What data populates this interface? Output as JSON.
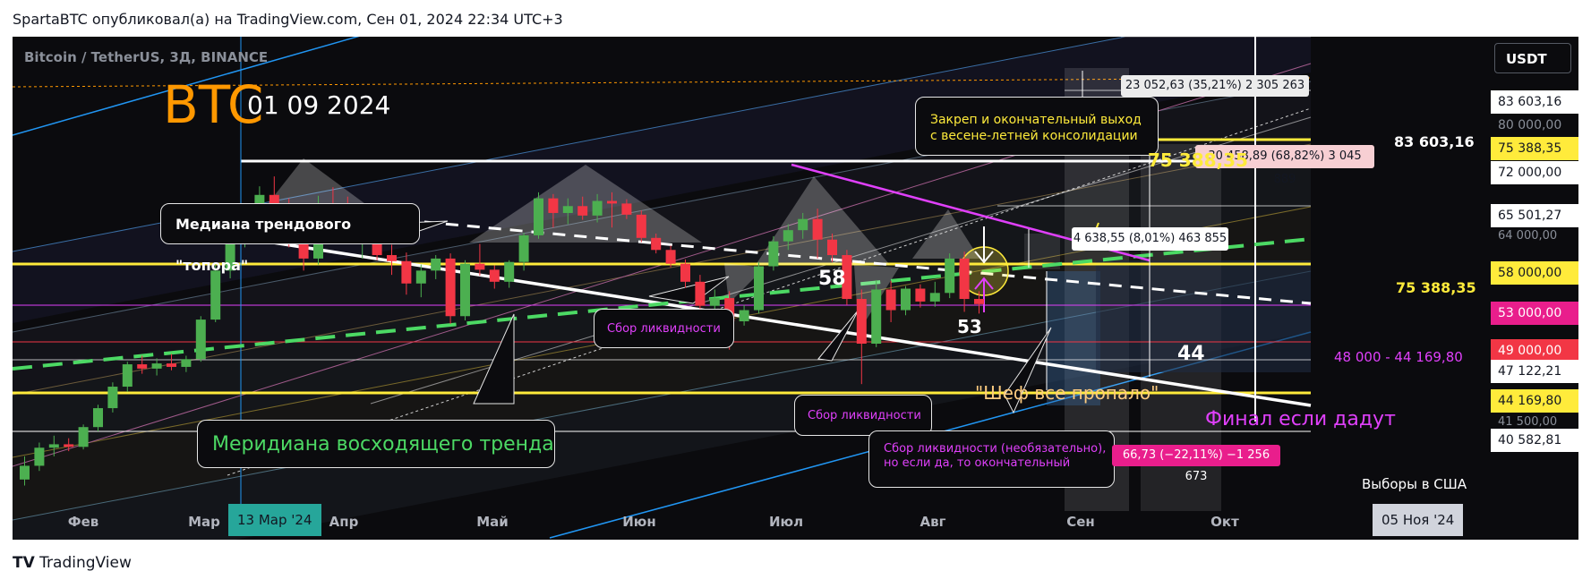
{
  "header": {
    "text": "SpartaBTC опубликовал(а) на TradingView.com, Сен 01, 2024 22:34 UTC+3"
  },
  "symbol": {
    "text": "Bitcoin / TetherUS, 3Д, BINANCE"
  },
  "big_title": {
    "ticker": "BTC",
    "date": "01 09 2024"
  },
  "currency_button": "USDT",
  "footer": {
    "logo_icon": "TV",
    "brand": "TradingView"
  },
  "colors": {
    "bg": "#0b0b0e",
    "up": "#26a69a",
    "up_green": "#4caf50",
    "down": "#f23645",
    "yellow": "#ffeb3b",
    "magenta": "#e040fb",
    "green_dash": "#4cd964",
    "orange": "#ff9800"
  },
  "callouts": {
    "median": "Медиана трендового  \"топора\"",
    "meridian": "Меридиана восходящего тренда",
    "top_exit_line1": "Закреп и окончательный выход",
    "top_exit_line2": "с весене-летней консолидации",
    "liquidity1": "Сбор ликвидности",
    "liquidity2": "Сбор ликвидности",
    "liquidity3_line1": "Сбор ликвидности (необязательно),",
    "liquidity3_line2": "но если да, то окончательный"
  },
  "measures": {
    "m1": "23 052,63 (35,21%) 2 305 263",
    "m2": "30 458,89 (68,82%) 3 045 889",
    "m3": "4 638,55 (8,01%) 463 855",
    "m4": "66,73 (−22,11%) −1 256 673"
  },
  "annotations": {
    "num58": "58",
    "num53": "53",
    "num44": "44",
    "chef": "\"Шеф все пропало\"",
    "final": "Финал если дадут",
    "range": "48 000 - 44 169,80",
    "level_75_left": "75 388,35",
    "level_75_right": "75 388,35",
    "level_83": "83 603,16",
    "elections": "Выборы в США"
  },
  "price_axis": [
    {
      "text": "83 603,16",
      "style": "dark"
    },
    {
      "text": "80 000,00",
      "style": "plain"
    },
    {
      "text": "75 388,35",
      "style": "yellow"
    },
    {
      "text": "72 000,00",
      "style": "dark"
    },
    {
      "text": "65 501,27",
      "style": "dark"
    },
    {
      "text": "64 000,00",
      "style": "plain"
    },
    {
      "text": "58 000,00",
      "style": "yellow"
    },
    {
      "text": "53 000,00",
      "style": "magenta"
    },
    {
      "text": "49 000,00",
      "style": "red"
    },
    {
      "text": "47 122,21",
      "style": "dark"
    },
    {
      "text": "44 169,80",
      "style": "yellow"
    },
    {
      "text": "41 500,00",
      "style": "plain"
    },
    {
      "text": "40 582,81",
      "style": "dark"
    }
  ],
  "time_axis": [
    "Фев",
    "Мар",
    "Апр",
    "Май",
    "Июн",
    "Июл",
    "Авг",
    "Сен",
    "Окт"
  ],
  "time_highlights": {
    "start": "13 Мар '24",
    "end": "05 Ноя '24"
  },
  "chart_data": {
    "type": "candlestick",
    "title": "Bitcoin / TetherUS, 3Д, BINANCE",
    "ylim": [
      39000,
      90000
    ],
    "candles": [
      [
        38500,
        41200,
        37800,
        40100
      ],
      [
        40100,
        42800,
        39500,
        42200
      ],
      [
        42200,
        43600,
        41200,
        42600
      ],
      [
        42600,
        43300,
        41800,
        42300
      ],
      [
        42300,
        44900,
        42000,
        44600
      ],
      [
        44600,
        47200,
        44100,
        46800
      ],
      [
        46800,
        49800,
        46300,
        49300
      ],
      [
        49300,
        52200,
        48700,
        51900
      ],
      [
        51900,
        52900,
        50800,
        51400
      ],
      [
        51400,
        52600,
        50600,
        52000
      ],
      [
        52000,
        53100,
        51200,
        51600
      ],
      [
        51600,
        52900,
        51000,
        52500
      ],
      [
        52500,
        57500,
        52200,
        57100
      ],
      [
        57100,
        63500,
        56800,
        62800
      ],
      [
        62800,
        67500,
        61900,
        66800
      ],
      [
        66800,
        69000,
        65500,
        67400
      ],
      [
        67400,
        72600,
        66800,
        71600
      ],
      [
        71600,
        73750,
        69500,
        70200
      ],
      [
        70200,
        71200,
        65500,
        67800
      ],
      [
        67800,
        69900,
        62800,
        64200
      ],
      [
        64200,
        71500,
        63500,
        70600
      ],
      [
        70600,
        72500,
        68000,
        69500
      ],
      [
        69500,
        71400,
        66000,
        66500
      ],
      [
        66500,
        68900,
        64200,
        66700
      ],
      [
        66700,
        67400,
        64000,
        64600
      ],
      [
        64600,
        65800,
        62300,
        63900
      ],
      [
        63900,
        64900,
        60000,
        61300
      ],
      [
        61300,
        63500,
        59700,
        62800
      ],
      [
        62800,
        64600,
        61800,
        64200
      ],
      [
        64200,
        64800,
        56600,
        57500
      ],
      [
        57500,
        64000,
        57000,
        63600
      ],
      [
        63600,
        65900,
        62200,
        62900
      ],
      [
        62900,
        63400,
        60700,
        61500
      ],
      [
        61500,
        64000,
        60800,
        63800
      ],
      [
        63800,
        67200,
        62800,
        66900
      ],
      [
        66900,
        71900,
        66500,
        71200
      ],
      [
        71200,
        71700,
        67800,
        69500
      ],
      [
        69500,
        71200,
        68200,
        70300
      ],
      [
        70300,
        71400,
        68700,
        69200
      ],
      [
        69200,
        71700,
        68400,
        70900
      ],
      [
        70900,
        71900,
        67800,
        70600
      ],
      [
        70600,
        71100,
        68800,
        69300
      ],
      [
        69300,
        69800,
        66100,
        66600
      ],
      [
        66600,
        67100,
        64800,
        65200
      ],
      [
        65200,
        65700,
        63200,
        63600
      ],
      [
        63600,
        64100,
        60800,
        61500
      ],
      [
        61500,
        62300,
        57900,
        58700
      ],
      [
        58700,
        60600,
        56500,
        59600
      ],
      [
        59600,
        60400,
        53600,
        56900
      ],
      [
        56900,
        58800,
        56400,
        58200
      ],
      [
        58200,
        63800,
        57800,
        63300
      ],
      [
        63300,
        66800,
        62800,
        66200
      ],
      [
        66200,
        68200,
        65200,
        67500
      ],
      [
        67500,
        69500,
        66500,
        68800
      ],
      [
        68800,
        70000,
        64200,
        66400
      ],
      [
        66400,
        67100,
        63800,
        64600
      ],
      [
        64600,
        65200,
        58800,
        59500
      ],
      [
        59500,
        60600,
        49600,
        54300
      ],
      [
        54300,
        61700,
        53900,
        60600
      ],
      [
        60600,
        61600,
        56800,
        58200
      ],
      [
        58200,
        61000,
        57600,
        60700
      ],
      [
        60700,
        61200,
        58500,
        59200
      ],
      [
        59200,
        61500,
        58600,
        60200
      ],
      [
        60200,
        64800,
        59600,
        64200
      ],
      [
        64200,
        65000,
        58000,
        59500
      ],
      [
        59500,
        60400,
        57800,
        58900
      ]
    ]
  }
}
